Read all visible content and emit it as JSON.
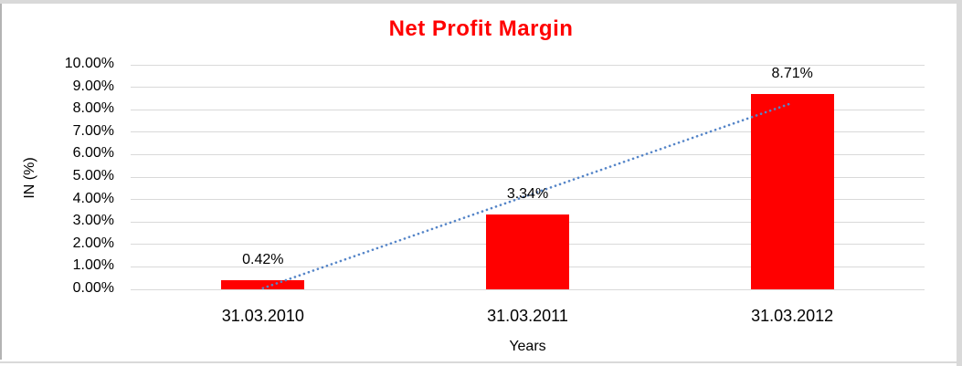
{
  "colors": {
    "bar": "#ff0000",
    "trendline": "#5585c8",
    "gridline": "#d9d9d9",
    "title": "#ff0000",
    "axis_text": "#000000",
    "frame_border": "#d9d9d9",
    "frame_left_line": "#b3b3b3"
  },
  "chart_data": {
    "type": "bar",
    "title": "Net Profit Margin",
    "categories": [
      "31.03.2010",
      "31.03.2011",
      "31.03.2012"
    ],
    "values": [
      0.42,
      3.34,
      8.71
    ],
    "data_labels": [
      "0.42%",
      "3.34%",
      "8.71%"
    ],
    "xlabel": "Years",
    "ylabel": "IN (%)",
    "ylim": [
      0,
      10
    ],
    "ytick_step": 1,
    "ytick_labels": [
      "0.00%",
      "1.00%",
      "2.00%",
      "3.00%",
      "4.00%",
      "5.00%",
      "6.00%",
      "7.00%",
      "8.00%",
      "9.00%",
      "10.00%"
    ],
    "grid": true,
    "legend": "none",
    "trendline": {
      "style": "dotted",
      "type": "linear",
      "start_category_index": 0,
      "start_value": 0.05,
      "end_category_index": 2,
      "end_value": 8.3
    }
  }
}
